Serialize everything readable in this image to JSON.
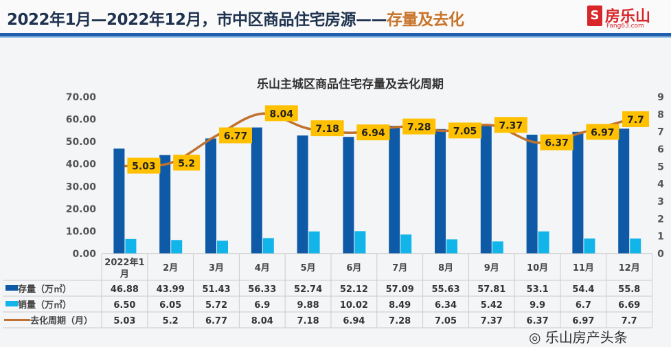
{
  "header": {
    "title_main": "2022年1月—2022年12月，市中区商品住宅房源——",
    "title_highlight": "存量及去化"
  },
  "logo": {
    "name": "房乐山",
    "url": "Fang63.com"
  },
  "watermark": "乐山房产头条",
  "colors": {
    "stock": "#0e5aa7",
    "sales": "#12b5ea",
    "cycle": "#c0722f",
    "label_bg": "#ffc000"
  },
  "chart_data": {
    "type": "bar",
    "title": "乐山主城区商品住宅存量及去化周期",
    "categories": [
      "2022年1月",
      "2月",
      "3月",
      "4月",
      "5月",
      "6月",
      "7月",
      "8月",
      "9月",
      "10月",
      "11月",
      "12月"
    ],
    "left_axis": {
      "ylim": [
        0,
        70
      ],
      "ticks": [
        "0.00",
        "10.00",
        "20.00",
        "30.00",
        "40.00",
        "50.00",
        "60.00",
        "70.00"
      ]
    },
    "right_axis": {
      "ylim": [
        0,
        9
      ],
      "ticks": [
        "0",
        "1",
        "2",
        "3",
        "4",
        "5",
        "6",
        "7",
        "8",
        "9"
      ]
    },
    "series": [
      {
        "name": "存量（万㎡）",
        "type": "bar",
        "axis": "left",
        "values": [
          46.88,
          43.99,
          51.43,
          56.33,
          52.74,
          52.12,
          57.09,
          55.63,
          57.81,
          53.1,
          54.4,
          55.8
        ],
        "labels": [
          "46.88",
          "43.99",
          "51.43",
          "56.33",
          "52.74",
          "52.12",
          "57.09",
          "55.63",
          "57.81",
          "53.1",
          "54.4",
          "55.8"
        ]
      },
      {
        "name": "销量（万㎡）",
        "type": "bar",
        "axis": "left",
        "values": [
          6.5,
          6.05,
          5.72,
          6.9,
          9.88,
          10.02,
          8.49,
          6.34,
          5.42,
          9.9,
          6.7,
          6.69
        ],
        "labels": [
          "6.50",
          "6.05",
          "5.72",
          "6.9",
          "9.88",
          "10.02",
          "8.49",
          "6.34",
          "5.42",
          "9.9",
          "6.7",
          "6.69"
        ]
      },
      {
        "name": "去化周期（月）",
        "type": "line",
        "axis": "right",
        "values": [
          5.03,
          5.2,
          6.77,
          8.04,
          7.18,
          6.94,
          7.28,
          7.05,
          7.37,
          6.37,
          6.97,
          7.7
        ],
        "labels": [
          "5.03",
          "5.2",
          "6.77",
          "8.04",
          "7.18",
          "6.94",
          "7.28",
          "7.05",
          "7.37",
          "6.37",
          "6.97",
          "7.7"
        ]
      }
    ],
    "legend": "data-table-bottom",
    "grid": false
  }
}
